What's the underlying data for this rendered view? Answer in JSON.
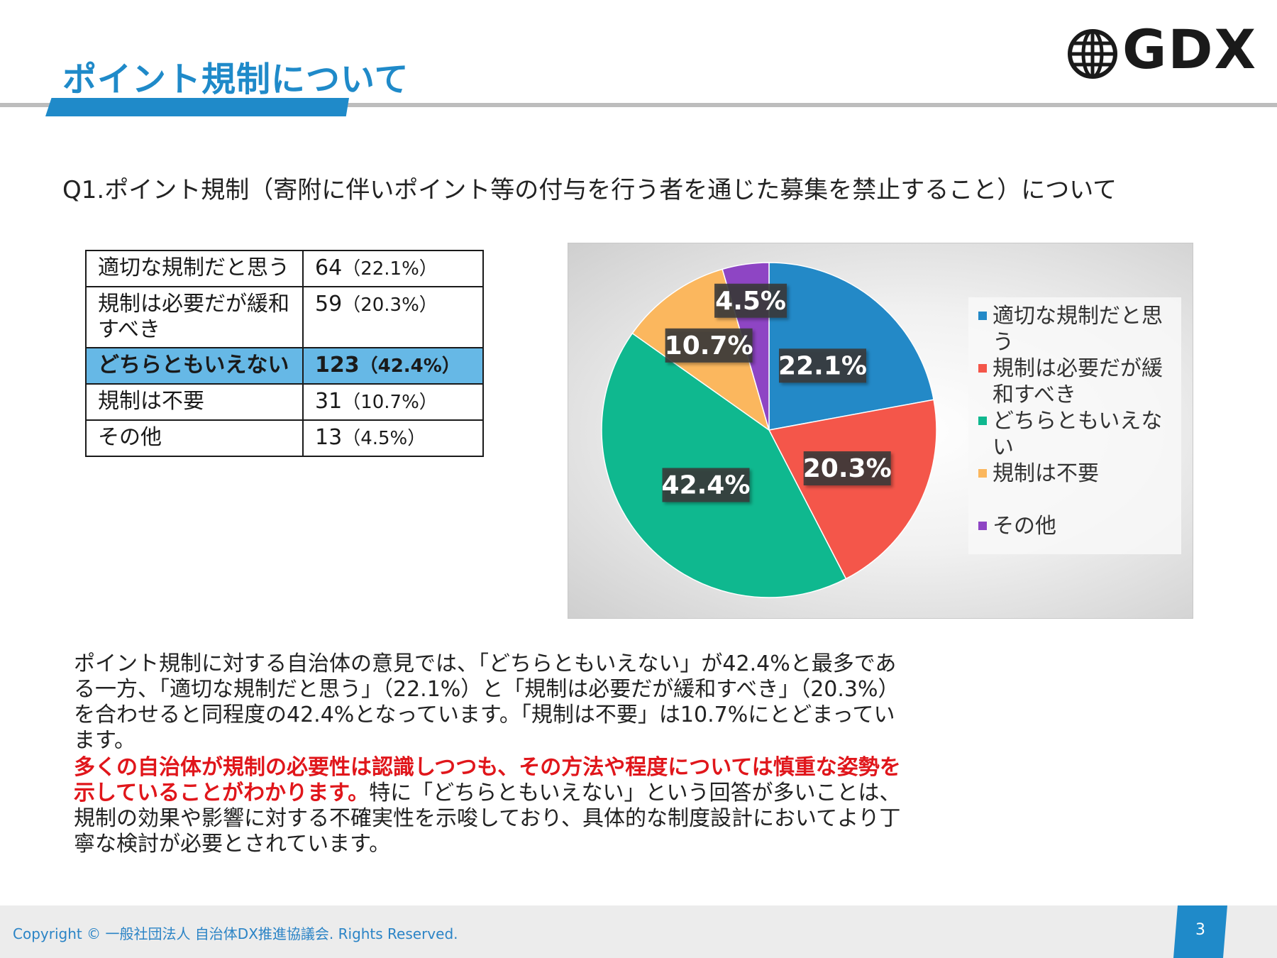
{
  "header": {
    "title": "ポイント規制について",
    "logo_text": "GDX",
    "logo_icon": "globe-icon"
  },
  "question": "Q1.ポイント規制（寄附に伴いポイント等の付与を行う者を通じた募集を禁止すること）について",
  "table": {
    "rows": [
      {
        "label": "適切な規制だと思う",
        "count": "64",
        "pct": "（22.1%）",
        "highlight": false
      },
      {
        "label": "規制は必要だが緩和すべき",
        "count": "59",
        "pct": "（20.3%）",
        "highlight": false
      },
      {
        "label": "どちらともいえない",
        "count": "123",
        "pct": "（42.4%）",
        "highlight": true
      },
      {
        "label": "規制は不要",
        "count": "31",
        "pct": "（10.7%）",
        "highlight": false
      },
      {
        "label": "その他",
        "count": "13",
        "pct": "（4.5%）",
        "highlight": false
      }
    ]
  },
  "chart_data": {
    "type": "pie",
    "categories": [
      "適切な規制だと思う",
      "規制は必要だが緩和すべき",
      "どちらともいえない",
      "規制は不要",
      "その他"
    ],
    "values": [
      22.1,
      20.3,
      42.4,
      10.7,
      4.5
    ],
    "data_labels": [
      "22.1%",
      "20.3%",
      "42.4%",
      "10.7%",
      "4.5%"
    ],
    "colors": [
      "#2389c7",
      "#f4564a",
      "#0fb88f",
      "#fbb75e",
      "#8e45c4"
    ],
    "legend": {
      "placement": "right"
    },
    "title": ""
  },
  "body": {
    "para1": "ポイント規制に対する自治体の意見では、「どちらともいえない」が42.4%と最多である一方、「適切な規制だと思う」（22.1%）と「規制は必要だが緩和すべき」（20.3%）を合わせると同程度の42.4%となっています。「規制は不要」は10.7%にとどまっています。",
    "para2_emphasis": "多くの自治体が規制の必要性は認識しつつも、その方法や程度については慎重な姿勢を示していることがわかります。",
    "para2_rest": "特に「どちらともいえない」という回答が多いことは、規制の効果や影響に対する不確実性を示唆しており、具体的な制度設計においてより丁寧な検討が必要とされています。"
  },
  "footer": {
    "copyright": "Copyright © 一般社団法人 自治体DX推進協議会. Rights Reserved.",
    "page_number": "3"
  }
}
